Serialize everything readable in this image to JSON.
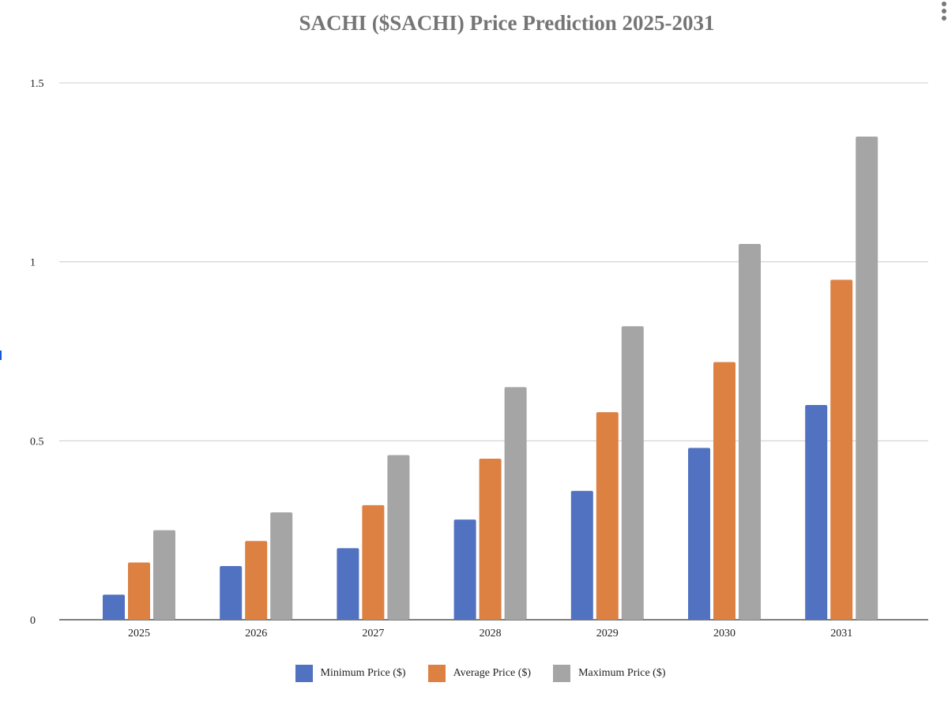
{
  "chart_data": {
    "type": "bar",
    "title": "SACHI ($SACHI) Price Prediction 2025-2031",
    "xlabel": "",
    "ylabel": "",
    "categories": [
      "2025",
      "2026",
      "2027",
      "2028",
      "2029",
      "2030",
      "2031"
    ],
    "series": [
      {
        "name": "Minimum Price ($)",
        "color": "#5072c1",
        "values": [
          0.07,
          0.15,
          0.2,
          0.28,
          0.36,
          0.48,
          0.6
        ]
      },
      {
        "name": "Average Price ($)",
        "color": "#dd8143",
        "values": [
          0.16,
          0.22,
          0.32,
          0.45,
          0.58,
          0.72,
          0.95
        ]
      },
      {
        "name": "Maximum Price ($)",
        "color": "#a5a5a5",
        "values": [
          0.25,
          0.3,
          0.46,
          0.65,
          0.82,
          1.05,
          1.35
        ]
      }
    ],
    "ylim": [
      0,
      1.5
    ],
    "yticks": [
      "0",
      "0.5",
      "1",
      "1.5"
    ],
    "grid": true,
    "legend": "bottom"
  },
  "ui": {
    "menu_icon": "more-vertical-icon"
  }
}
